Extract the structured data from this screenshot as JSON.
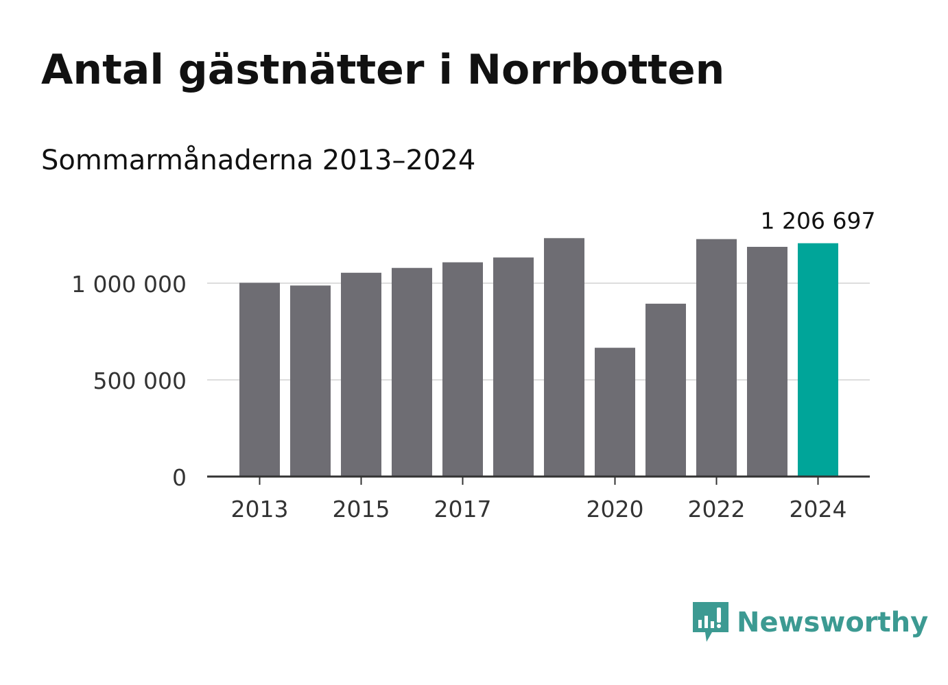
{
  "title": "Antal gästnätter i Norrbotten",
  "subtitle": "Sommarmånaderna 2013–2024",
  "brand": "Newsworthy",
  "colors": {
    "bar": "#6e6d73",
    "highlight": "#00a599",
    "grid": "#dddddd",
    "axis": "#333333",
    "brand": "#3c9a92",
    "text": "#111111"
  },
  "chart_data": {
    "type": "bar",
    "categories": [
      "2013",
      "2014",
      "2015",
      "2016",
      "2017",
      "2018",
      "2019",
      "2020",
      "2021",
      "2022",
      "2023",
      "2024"
    ],
    "values": [
      1002000,
      988000,
      1054000,
      1079000,
      1108000,
      1133000,
      1233000,
      666000,
      894000,
      1228000,
      1188000,
      1206697
    ],
    "x_tick_labels": [
      "2013",
      "2015",
      "2017",
      "2020",
      "2022",
      "2024"
    ],
    "y_ticks": [
      {
        "value": 0,
        "label": "0"
      },
      {
        "value": 500000,
        "label": "500 000"
      },
      {
        "value": 1000000,
        "label": "1 000 000"
      }
    ],
    "ylim": [
      0,
      1400000
    ],
    "highlight_category": "2024",
    "data_labels": [
      {
        "category": "2024",
        "label": "1 206 697"
      }
    ],
    "grid": true,
    "legend": false
  }
}
